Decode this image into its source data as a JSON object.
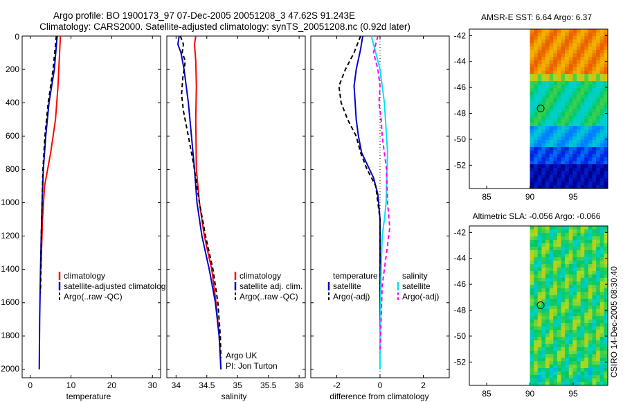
{
  "title_line1": "Argo profile: BO 1900173_97 07-Dec-2005 20051208_3 47.62S 91.243E",
  "title_line2": "Climatology: CARS2000. Satellite-adjusted climatology: synTS_20051208.nc (0.92d later)",
  "credit": "CSIRO 14-Dec-2005 08:30:40",
  "colors": {
    "climatology": "#ff0000",
    "satellite": "#0000cc",
    "argo": "#000000",
    "sal_sat": "#00e5e5",
    "sal_argo": "#ff00ff"
  },
  "depth_ticks": [
    "0",
    "200",
    "400",
    "600",
    "800",
    "1000",
    "1200",
    "1400",
    "1600",
    "1800",
    "2000"
  ],
  "chart_data": [
    {
      "type": "line",
      "xlabel": "temperature",
      "xlim": [
        -2,
        32
      ],
      "ylim": [
        0,
        2050
      ],
      "xticks": [
        "0",
        "10",
        "20",
        "30"
      ],
      "xtick_values": [
        0,
        10,
        20,
        30
      ],
      "legend": [
        "climatology",
        "satellite-adjusted climatolog",
        "Argo(..raw -QC)"
      ],
      "series": [
        {
          "name": "climatology",
          "color": "#ff0000",
          "dash": "",
          "points": [
            [
              7.4,
              0
            ],
            [
              7.2,
              100
            ],
            [
              6.8,
              300
            ],
            [
              6.2,
              500
            ],
            [
              5.0,
              700
            ],
            [
              3.5,
              900
            ],
            [
              3.0,
              1100
            ],
            [
              2.6,
              1400
            ]
          ]
        },
        {
          "name": "satellite-adjusted climatology",
          "color": "#0000cc",
          "dash": "",
          "points": [
            [
              6.6,
              0
            ],
            [
              5.9,
              200
            ],
            [
              4.6,
              400
            ],
            [
              3.8,
              600
            ],
            [
              3.2,
              800
            ],
            [
              2.9,
              1000
            ],
            [
              2.7,
              1200
            ],
            [
              2.5,
              1400
            ],
            [
              2.3,
              1700
            ],
            [
              2.2,
              2000
            ]
          ]
        },
        {
          "name": "Argo(..raw -QC)",
          "color": "#000000",
          "dash": "6,4",
          "points": [
            [
              6.4,
              0
            ],
            [
              5.6,
              200
            ],
            [
              4.4,
              400
            ],
            [
              3.6,
              600
            ],
            [
              3.1,
              800
            ],
            [
              2.9,
              1000
            ],
            [
              2.7,
              1200
            ],
            [
              2.6,
              1400
            ],
            [
              2.5,
              1540
            ]
          ]
        }
      ]
    },
    {
      "type": "line",
      "xlabel": "salinity",
      "xlim": [
        33.85,
        36.1
      ],
      "ylim": [
        0,
        2050
      ],
      "xticks": [
        "34",
        "34.5",
        "35",
        "35.5",
        "36"
      ],
      "xtick_values": [
        34,
        34.5,
        35,
        35.5,
        36
      ],
      "legend": [
        "climatology",
        "satellite adj. clim.",
        "Argo(..raw -QC)"
      ],
      "annotations": [
        "Argo UK",
        "PI: Jon Turton"
      ],
      "series": [
        {
          "name": "climatology",
          "color": "#ff0000",
          "dash": "",
          "points": [
            [
              34.32,
              0
            ],
            [
              34.3,
              50
            ],
            [
              34.32,
              150
            ],
            [
              34.33,
              300
            ],
            [
              34.32,
              500
            ],
            [
              34.33,
              800
            ],
            [
              34.38,
              1000
            ],
            [
              34.46,
              1200
            ],
            [
              34.58,
              1400
            ],
            [
              34.65,
              1600
            ],
            [
              34.7,
              1800
            ],
            [
              34.73,
              2000
            ]
          ]
        },
        {
          "name": "satellite adj. clim.",
          "color": "#0000cc",
          "dash": "",
          "points": [
            [
              34.05,
              0
            ],
            [
              34.03,
              50
            ],
            [
              34.08,
              100
            ],
            [
              34.13,
              200
            ],
            [
              34.2,
              400
            ],
            [
              34.25,
              600
            ],
            [
              34.3,
              800
            ],
            [
              34.34,
              1000
            ],
            [
              34.42,
              1200
            ],
            [
              34.54,
              1400
            ],
            [
              34.64,
              1600
            ],
            [
              34.7,
              1800
            ],
            [
              34.73,
              2000
            ]
          ]
        },
        {
          "name": "Argo(..raw -QC)",
          "color": "#000000",
          "dash": "6,4",
          "points": [
            [
              34.07,
              0
            ],
            [
              34.12,
              50
            ],
            [
              34.1,
              100
            ],
            [
              34.15,
              150
            ],
            [
              34.11,
              250
            ],
            [
              34.09,
              350
            ],
            [
              34.12,
              450
            ],
            [
              34.2,
              600
            ],
            [
              34.3,
              800
            ],
            [
              34.38,
              1000
            ],
            [
              34.48,
              1200
            ],
            [
              34.6,
              1400
            ],
            [
              34.68,
              1600
            ],
            [
              34.72,
              1800
            ],
            [
              34.73,
              1930
            ]
          ]
        }
      ]
    },
    {
      "type": "line",
      "xlabel": "difference from climatology",
      "xlim": [
        -3.2,
        3.2
      ],
      "ylim": [
        0,
        2050
      ],
      "xticks": [
        "-2",
        "0",
        "2"
      ],
      "xtick_values": [
        -2,
        0,
        2
      ],
      "legend_temperature": [
        "temperature",
        "satellite",
        "Argo(-adj)"
      ],
      "legend_salinity": [
        "salinity",
        "satellite",
        "Argo(-adj)"
      ],
      "series": [
        {
          "name": "temperature satellite",
          "color": "#0000cc",
          "dash": "",
          "points": [
            [
              -0.8,
              0
            ],
            [
              -0.9,
              80
            ],
            [
              -1.1,
              200
            ],
            [
              -1.2,
              300
            ],
            [
              -1.15,
              400
            ],
            [
              -1.1,
              500
            ],
            [
              -1.0,
              600
            ],
            [
              -0.85,
              700
            ],
            [
              -0.3,
              850
            ],
            [
              -0.1,
              950
            ],
            [
              0,
              1100
            ],
            [
              0,
              1300
            ],
            [
              0,
              1600
            ],
            [
              0,
              2000
            ]
          ]
        },
        {
          "name": "temperature Argo(-adj)",
          "color": "#000000",
          "dash": "6,4",
          "points": [
            [
              -0.9,
              0
            ],
            [
              -1.2,
              100
            ],
            [
              -1.6,
              200
            ],
            [
              -1.9,
              300
            ],
            [
              -1.8,
              400
            ],
            [
              -1.5,
              500
            ],
            [
              -1.1,
              600
            ],
            [
              -0.9,
              700
            ],
            [
              -0.6,
              800
            ],
            [
              -0.2,
              900
            ],
            [
              0,
              1100
            ],
            [
              0,
              1540
            ]
          ]
        },
        {
          "name": "salinity satellite",
          "color": "#00e5e5",
          "dash": "",
          "points": [
            [
              -0.4,
              0
            ],
            [
              -0.2,
              100
            ],
            [
              0,
              200
            ],
            [
              0.1,
              300
            ],
            [
              0.2,
              400
            ],
            [
              0.25,
              500
            ],
            [
              0.3,
              600
            ],
            [
              0.35,
              700
            ],
            [
              0.3,
              900
            ],
            [
              0.28,
              1000
            ],
            [
              0.2,
              1100
            ],
            [
              0.1,
              1200
            ],
            [
              0.05,
              1400
            ],
            [
              0,
              1800
            ],
            [
              0,
              2000
            ]
          ]
        },
        {
          "name": "salinity Argo(-adj)",
          "color": "#ff00ff",
          "dash": "6,4",
          "points": [
            [
              -0.1,
              0
            ],
            [
              -0.3,
              100
            ],
            [
              -0.1,
              200
            ],
            [
              0,
              300
            ],
            [
              -0.05,
              400
            ],
            [
              0.05,
              500
            ],
            [
              0.1,
              600
            ],
            [
              0.3,
              800
            ],
            [
              0.35,
              1000
            ],
            [
              0.45,
              1150
            ],
            [
              0.3,
              1300
            ],
            [
              0.1,
              1500
            ],
            [
              0,
              1900
            ]
          ]
        }
      ]
    },
    {
      "type": "heatmap",
      "title": "AMSR-E SST: 6.64 Argo: 6.37",
      "xticks": [
        "85",
        "90",
        "95"
      ],
      "xtick_values": [
        85,
        90,
        95
      ],
      "yticks": [
        "-42",
        "-44",
        "-46",
        "-48",
        "-50",
        "-52"
      ],
      "ytick_values": [
        -42,
        -44,
        -46,
        -48,
        -50,
        -52
      ],
      "xlim": [
        83,
        99
      ],
      "ylim": [
        -53.8,
        -41.5
      ],
      "argo_position": [
        91.24,
        -47.62
      ],
      "data_lon_range": [
        90,
        99
      ]
    },
    {
      "type": "heatmap",
      "title": "Altimetric SLA: -0.056 Argo: -0.066",
      "xticks": [
        "85",
        "90",
        "95"
      ],
      "xtick_values": [
        85,
        90,
        95
      ],
      "yticks": [
        "-42",
        "-44",
        "-46",
        "-48",
        "-50",
        "-52"
      ],
      "ytick_values": [
        -42,
        -44,
        -46,
        -48,
        -50,
        -52
      ],
      "xlim": [
        83,
        99
      ],
      "ylim": [
        -53.8,
        -41.5
      ],
      "argo_position": [
        91.24,
        -47.62
      ],
      "data_lon_range": [
        90,
        99
      ]
    }
  ]
}
